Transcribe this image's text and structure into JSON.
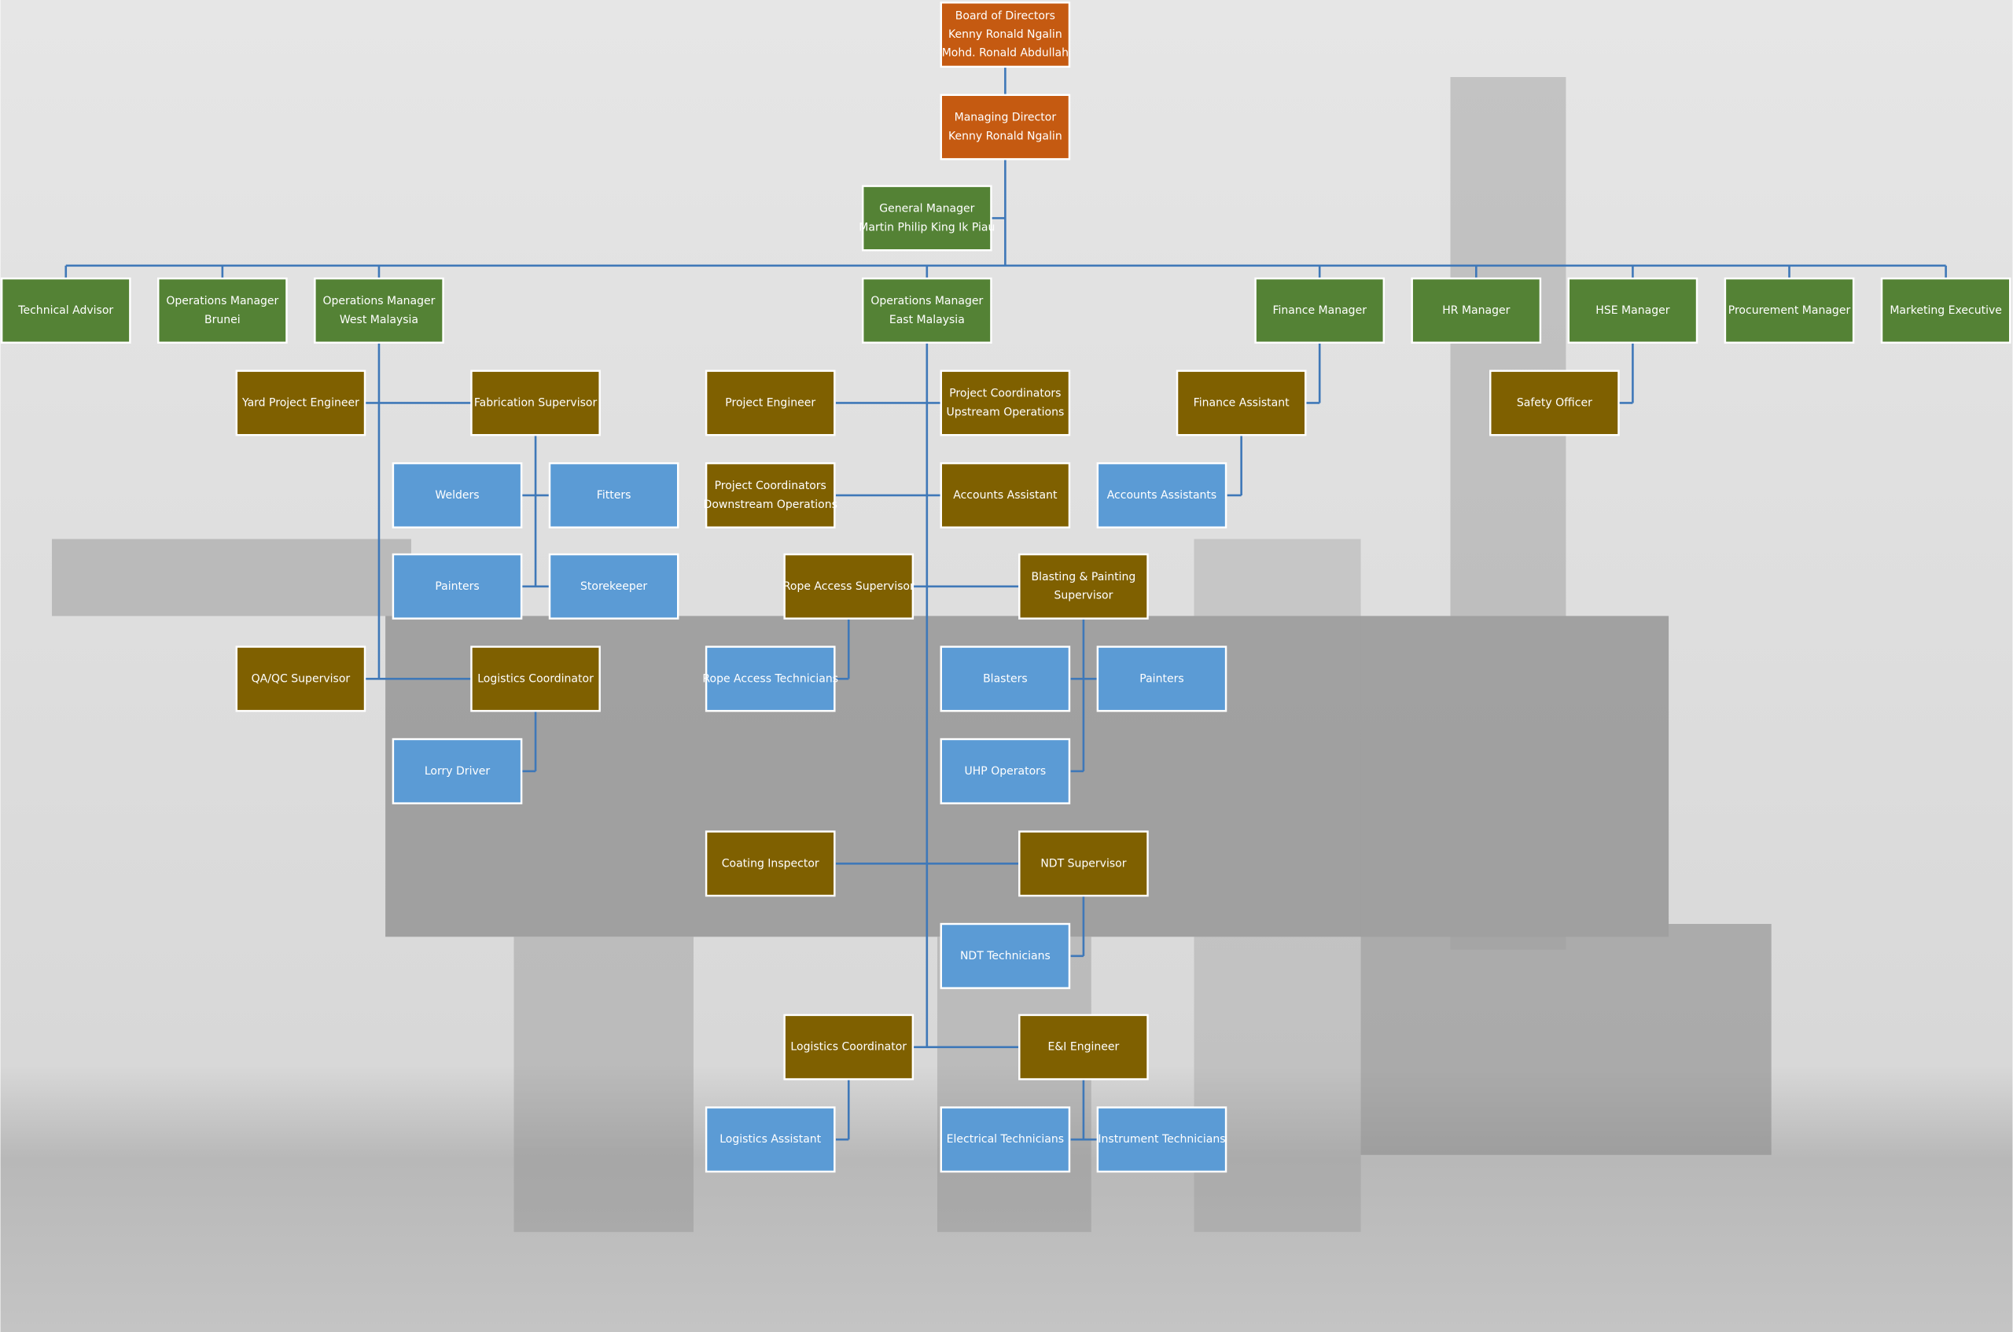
{
  "nodes": [
    {
      "lines": [
        "Board of Directors",
        "Kenny Ronald Ngalin",
        "Mohd. Ronald Abdullah"
      ]
    },
    {
      "lines": [
        "Managing Director",
        "Kenny Ronald Ngalin"
      ]
    },
    {
      "lines": [
        "General Manager",
        "Martin Philip King Ik Piau"
      ]
    },
    {
      "lines": [
        "Technical Advisor"
      ]
    },
    {
      "lines": [
        "Operations Manager",
        "Brunei"
      ]
    },
    {
      "lines": [
        "Operations Manager",
        "West  Malaysia"
      ]
    },
    {
      "lines": [
        "Operations Manager",
        "East Malaysia"
      ]
    },
    {
      "lines": [
        "Finance Manager"
      ]
    },
    {
      "lines": [
        "HR Manager"
      ]
    },
    {
      "lines": [
        "HSE Manager"
      ]
    },
    {
      "lines": [
        "Procurement Manager"
      ]
    },
    {
      "lines": [
        "Marketing Executive"
      ]
    },
    {
      "lines": [
        "Yard Project Engineer"
      ]
    },
    {
      "lines": [
        "Fabrication Supervisor"
      ]
    },
    {
      "lines": [
        "Project Engineer"
      ]
    },
    {
      "lines": [
        "Project Coordinators",
        "Upstream Operations"
      ]
    },
    {
      "lines": [
        "Finance Assistant"
      ]
    },
    {
      "lines": [
        "Safety Officer"
      ]
    },
    {
      "lines": [
        "Welders"
      ]
    },
    {
      "lines": [
        "Fitters"
      ]
    },
    {
      "lines": [
        "Project Coordinators",
        "Downstream Operations"
      ]
    },
    {
      "lines": [
        "Accounts Assistant"
      ]
    },
    {
      "lines": [
        "Accounts Assistants"
      ]
    },
    {
      "lines": [
        "Painters"
      ]
    },
    {
      "lines": [
        "Storekeeper"
      ]
    },
    {
      "lines": [
        "Rope Access Supervisor"
      ]
    },
    {
      "lines": [
        "Blasting & Painting",
        "Supervisor"
      ]
    },
    {
      "lines": [
        "QA/QC Supervisor"
      ]
    },
    {
      "lines": [
        "Logistics Coordinator"
      ]
    },
    {
      "lines": [
        "Rope Access Technicians"
      ]
    },
    {
      "lines": [
        "Blasters"
      ]
    },
    {
      "lines": [
        "Painters"
      ]
    },
    {
      "lines": [
        "Lorry Driver"
      ]
    },
    {
      "lines": [
        "UHP Operators"
      ]
    },
    {
      "lines": [
        "Coating Inspector"
      ]
    },
    {
      "lines": [
        "NDT Supervisor"
      ]
    },
    {
      "lines": [
        "NDT Technicians"
      ]
    },
    {
      "lines": [
        "Logistics Coordinator"
      ]
    },
    {
      "lines": [
        "E&I Engineer"
      ]
    },
    {
      "lines": [
        "Logistics Assistant"
      ]
    },
    {
      "lines": [
        "Electrical Technicians"
      ]
    },
    {
      "lines": [
        "Instrument Technicians"
      ]
    }
  ]
}
